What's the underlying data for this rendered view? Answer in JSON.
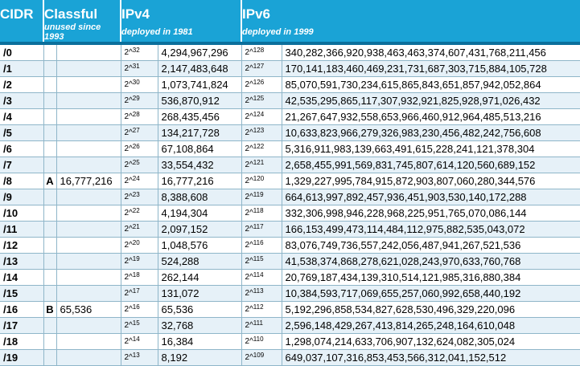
{
  "header": {
    "cidr": "CIDR",
    "classful": "Classful",
    "classful_note": "unused since 1993",
    "ipv4": "IPv4",
    "ipv4_note": "deployed in 1981",
    "ipv6": "IPv6",
    "ipv6_note": "deployed in 1999"
  },
  "colors": {
    "header_bg": "#1aa3d6",
    "alt_row_bg": "#e6f1f8",
    "grid": "#8fb6c9"
  },
  "rows": [
    {
      "cidr": "/0",
      "class": "",
      "classful": "",
      "v4_base": "2^",
      "v4_exp": "32",
      "v4": "4,294,967,296",
      "v6_base": "2^",
      "v6_exp": "128",
      "v6": "340,282,366,920,938,463,463,374,607,431,768,211,456"
    },
    {
      "cidr": "/1",
      "class": "",
      "classful": "",
      "v4_base": "2^",
      "v4_exp": "31",
      "v4": "2,147,483,648",
      "v6_base": "2^",
      "v6_exp": "127",
      "v6": "170,141,183,460,469,231,731,687,303,715,884,105,728"
    },
    {
      "cidr": "/2",
      "class": "",
      "classful": "",
      "v4_base": "2^",
      "v4_exp": "30",
      "v4": "1,073,741,824",
      "v6_base": "2^",
      "v6_exp": "126",
      "v6": "85,070,591,730,234,615,865,843,651,857,942,052,864"
    },
    {
      "cidr": "/3",
      "class": "",
      "classful": "",
      "v4_base": "2^",
      "v4_exp": "29",
      "v4": "536,870,912",
      "v6_base": "2^",
      "v6_exp": "125",
      "v6": "42,535,295,865,117,307,932,921,825,928,971,026,432"
    },
    {
      "cidr": "/4",
      "class": "",
      "classful": "",
      "v4_base": "2^",
      "v4_exp": "28",
      "v4": "268,435,456",
      "v6_base": "2^",
      "v6_exp": "124",
      "v6": "21,267,647,932,558,653,966,460,912,964,485,513,216"
    },
    {
      "cidr": "/5",
      "class": "",
      "classful": "",
      "v4_base": "2^",
      "v4_exp": "27",
      "v4": "134,217,728",
      "v6_base": "2^",
      "v6_exp": "123",
      "v6": "10,633,823,966,279,326,983,230,456,482,242,756,608"
    },
    {
      "cidr": "/6",
      "class": "",
      "classful": "",
      "v4_base": "2^",
      "v4_exp": "26",
      "v4": "67,108,864",
      "v6_base": "2^",
      "v6_exp": "122",
      "v6": "5,316,911,983,139,663,491,615,228,241,121,378,304"
    },
    {
      "cidr": "/7",
      "class": "",
      "classful": "",
      "v4_base": "2^",
      "v4_exp": "25",
      "v4": "33,554,432",
      "v6_base": "2^",
      "v6_exp": "121",
      "v6": "2,658,455,991,569,831,745,807,614,120,560,689,152"
    },
    {
      "cidr": "/8",
      "class": "A",
      "classful": "16,777,216",
      "v4_base": "2^",
      "v4_exp": "24",
      "v4": "16,777,216",
      "v6_base": "2^",
      "v6_exp": "120",
      "v6": "1,329,227,995,784,915,872,903,807,060,280,344,576"
    },
    {
      "cidr": "/9",
      "class": "",
      "classful": "",
      "v4_base": "2^",
      "v4_exp": "23",
      "v4": "8,388,608",
      "v6_base": "2^",
      "v6_exp": "119",
      "v6": "664,613,997,892,457,936,451,903,530,140,172,288"
    },
    {
      "cidr": "/10",
      "class": "",
      "classful": "",
      "v4_base": "2^",
      "v4_exp": "22",
      "v4": "4,194,304",
      "v6_base": "2^",
      "v6_exp": "118",
      "v6": "332,306,998,946,228,968,225,951,765,070,086,144"
    },
    {
      "cidr": "/11",
      "class": "",
      "classful": "",
      "v4_base": "2^",
      "v4_exp": "21",
      "v4": "2,097,152",
      "v6_base": "2^",
      "v6_exp": "117",
      "v6": "166,153,499,473,114,484,112,975,882,535,043,072"
    },
    {
      "cidr": "/12",
      "class": "",
      "classful": "",
      "v4_base": "2^",
      "v4_exp": "20",
      "v4": "1,048,576",
      "v6_base": "2^",
      "v6_exp": "116",
      "v6": "83,076,749,736,557,242,056,487,941,267,521,536"
    },
    {
      "cidr": "/13",
      "class": "",
      "classful": "",
      "v4_base": "2^",
      "v4_exp": "19",
      "v4": "524,288",
      "v6_base": "2^",
      "v6_exp": "115",
      "v6": "41,538,374,868,278,621,028,243,970,633,760,768"
    },
    {
      "cidr": "/14",
      "class": "",
      "classful": "",
      "v4_base": "2^",
      "v4_exp": "18",
      "v4": "262,144",
      "v6_base": "2^",
      "v6_exp": "114",
      "v6": "20,769,187,434,139,310,514,121,985,316,880,384"
    },
    {
      "cidr": "/15",
      "class": "",
      "classful": "",
      "v4_base": "2^",
      "v4_exp": "17",
      "v4": "131,072",
      "v6_base": "2^",
      "v6_exp": "113",
      "v6": "10,384,593,717,069,655,257,060,992,658,440,192"
    },
    {
      "cidr": "/16",
      "class": "B",
      "classful": "65,536",
      "v4_base": "2^",
      "v4_exp": "16",
      "v4": "65,536",
      "v6_base": "2^",
      "v6_exp": "112",
      "v6": "5,192,296,858,534,827,628,530,496,329,220,096"
    },
    {
      "cidr": "/17",
      "class": "",
      "classful": "",
      "v4_base": "2^",
      "v4_exp": "15",
      "v4": "32,768",
      "v6_base": "2^",
      "v6_exp": "111",
      "v6": "2,596,148,429,267,413,814,265,248,164,610,048"
    },
    {
      "cidr": "/18",
      "class": "",
      "classful": "",
      "v4_base": "2^",
      "v4_exp": "14",
      "v4": "16,384",
      "v6_base": "2^",
      "v6_exp": "110",
      "v6": "1,298,074,214,633,706,907,132,624,082,305,024"
    },
    {
      "cidr": "/19",
      "class": "",
      "classful": "",
      "v4_base": "2^",
      "v4_exp": "13",
      "v4": "8,192",
      "v6_base": "2^",
      "v6_exp": "109",
      "v6": "649,037,107,316,853,453,566,312,041,152,512"
    }
  ]
}
